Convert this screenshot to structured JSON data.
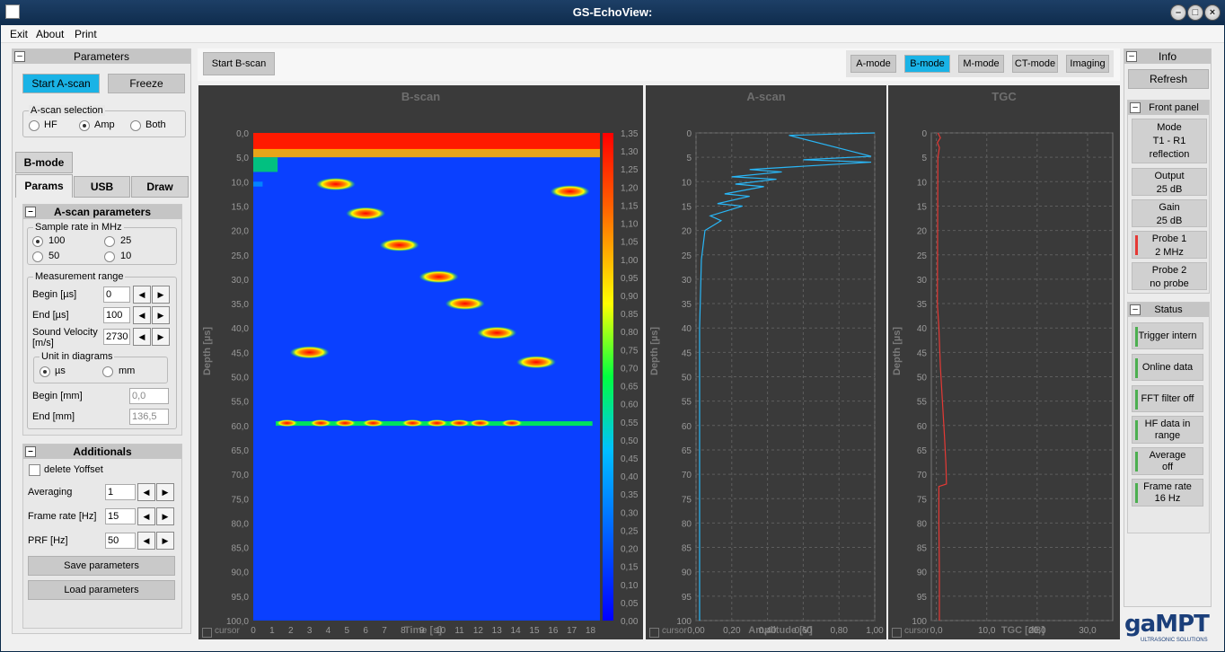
{
  "window": {
    "title": "GS-EchoView:"
  },
  "menu": [
    "Exit",
    "About",
    "Print"
  ],
  "parameters": {
    "title": "Parameters",
    "start_ascan": "Start A-scan",
    "freeze": "Freeze",
    "ascan_selection": {
      "label": "A-scan selection",
      "options": [
        "HF",
        "Amp",
        "Both"
      ],
      "selected": "Amp"
    }
  },
  "bmode_tab": "B-mode",
  "tabs": [
    "Params",
    "USB",
    "Draw"
  ],
  "ascan_params": {
    "title": "A-scan parameters",
    "sample_rate": {
      "label": "Sample rate  in MHz",
      "options": [
        "100",
        "25",
        "50",
        "10"
      ],
      "selected": "100"
    },
    "measurement": {
      "label": "Measurement range",
      "begin_label": "Begin [µs]",
      "begin_value": "0",
      "end_label": "End [µs]",
      "end_value": "100",
      "velocity_label": "Sound Velocity [m/s]",
      "velocity_value": "2730"
    },
    "unit": {
      "label": "Unit in diagrams",
      "options": [
        "µs",
        "mm"
      ],
      "selected": "µs"
    },
    "begin_mm_label": "Begin [mm]",
    "begin_mm_value": "0,0",
    "end_mm_label": "End [mm]",
    "end_mm_value": "136,5"
  },
  "additionals": {
    "title": "Additionals",
    "delete_yoffset": "delete Yoffset",
    "averaging_label": "Averaging",
    "averaging_value": "1",
    "framerate_label": "Frame rate [Hz]",
    "framerate_value": "15",
    "prf_label": "PRF [Hz]",
    "prf_value": "50",
    "save": "Save parameters",
    "load": "Load parameters"
  },
  "toolbar": {
    "start_bscan": "Start B-scan",
    "modes": [
      "A-mode",
      "B-mode",
      "M-mode",
      "CT-mode",
      "Imaging"
    ],
    "active_mode": "B-mode"
  },
  "bscan": {
    "title": "B-scan",
    "ylabel": "Depth [µs]",
    "xlabel": "Time [s]",
    "yticks": [
      "0,0",
      "5,0",
      "10,0",
      "15,0",
      "20,0",
      "25,0",
      "30,0",
      "35,0",
      "40,0",
      "45,0",
      "50,0",
      "55,0",
      "60,0",
      "65,0",
      "70,0",
      "75,0",
      "80,0",
      "85,0",
      "90,0",
      "95,0",
      "100,0"
    ],
    "xticks": [
      "0",
      "1",
      "2",
      "3",
      "4",
      "5",
      "6",
      "7",
      "8",
      "9",
      "10",
      "11",
      "12",
      "13",
      "14",
      "15",
      "16",
      "17",
      "18"
    ],
    "colorbar": [
      "1,35",
      "1,30",
      "1,25",
      "1,20",
      "1,15",
      "1,10",
      "1,05",
      "1,00",
      "0,95",
      "0,90",
      "0,85",
      "0,80",
      "0,75",
      "0,70",
      "0,65",
      "0,60",
      "0,55",
      "0,50",
      "0,45",
      "0,40",
      "0,35",
      "0,30",
      "0,25",
      "0,20",
      "0,15",
      "0,10",
      "0,05",
      "0,00"
    ],
    "cursor": "cursor"
  },
  "ascan_plot": {
    "title": "A-scan",
    "ylabel": "Depth [µs]",
    "xlabel": "Amplitude [V]",
    "yticks": [
      "0",
      "5",
      "10",
      "15",
      "20",
      "25",
      "30",
      "35",
      "40",
      "45",
      "50",
      "55",
      "60",
      "65",
      "70",
      "75",
      "80",
      "85",
      "90",
      "95",
      "100"
    ],
    "xticks": [
      "0,00",
      "0,20",
      "0,40",
      "0,60",
      "0,80",
      "1,00"
    ],
    "cursor": "cursor",
    "color": "#29b6f6"
  },
  "tgc_plot": {
    "title": "TGC",
    "ylabel": "Depth [µs]",
    "xlabel": "TGC [dB]",
    "yticks": [
      "0",
      "5",
      "10",
      "15",
      "20",
      "25",
      "30",
      "35",
      "40",
      "45",
      "50",
      "55",
      "60",
      "65",
      "70",
      "75",
      "80",
      "85",
      "90",
      "95",
      "100"
    ],
    "xticks": [
      "0,0",
      "10,0",
      "20,0",
      "30,0"
    ],
    "cursor": "cursor",
    "color": "#e53935"
  },
  "chart_data": [
    {
      "type": "heatmap",
      "title": "B-scan",
      "xlabel": "Time [s]",
      "ylabel": "Depth [µs]",
      "xlim": [
        0,
        18.5
      ],
      "ylim": [
        0,
        100
      ],
      "clim": [
        0,
        1.35
      ],
      "reflectors": [
        {
          "t": 4.4,
          "depth": 10.5
        },
        {
          "t": 6.0,
          "depth": 16.5
        },
        {
          "t": 7.8,
          "depth": 23.0
        },
        {
          "t": 9.9,
          "depth": 29.5
        },
        {
          "t": 11.3,
          "depth": 35.0
        },
        {
          "t": 13.0,
          "depth": 41.0
        },
        {
          "t": 16.9,
          "depth": 12.0
        },
        {
          "t": 3.0,
          "depth": 45.0
        },
        {
          "t": 15.1,
          "depth": 47.0
        }
      ],
      "backwall_depth": 59.5
    },
    {
      "type": "line",
      "title": "A-scan",
      "xlabel": "Amplitude [V]",
      "ylabel": "Depth [µs]",
      "xlim": [
        0,
        1.0
      ],
      "ylim": [
        0,
        100
      ],
      "series": [
        {
          "x": [
            1.0,
            0.52,
            0.98,
            0.6,
            0.98,
            0.3,
            0.48,
            0.2,
            0.45,
            0.22,
            0.38,
            0.16,
            0.3,
            0.12,
            0.26,
            0.08,
            0.14,
            0.05,
            0.04,
            0.03,
            0.02,
            0.02,
            0.02,
            0.02,
            0.02
          ],
          "y": [
            0,
            0.5,
            4.8,
            5.5,
            6.0,
            7.5,
            8.0,
            9.0,
            9.5,
            10.5,
            11.0,
            12.5,
            13.0,
            14.5,
            15.0,
            17.0,
            18.0,
            20.0,
            23.0,
            26.0,
            40.0,
            60.0,
            80.0,
            95.0,
            100
          ]
        }
      ]
    },
    {
      "type": "line",
      "title": "TGC",
      "xlabel": "TGC [dB]",
      "ylabel": "Depth [µs]",
      "xlim": [
        -1,
        35
      ],
      "ylim": [
        0,
        100
      ],
      "series": [
        {
          "x": [
            0.3,
            0.8,
            0.2,
            0.6,
            0.3,
            0.2,
            0.5,
            0.8,
            1.2,
            1.6,
            1.9,
            2.0,
            0.5,
            0.5,
            0.6,
            0.6
          ],
          "y": [
            0,
            1,
            2,
            3,
            5,
            35,
            40,
            48,
            55,
            62,
            68,
            72,
            72.5,
            80,
            90,
            100
          ]
        }
      ]
    }
  ],
  "info": {
    "title": "Info",
    "refresh": "Refresh",
    "front_panel": "Front panel",
    "items": [
      {
        "line1": "Mode",
        "line2": "T1 - R1",
        "line3": "reflection"
      },
      {
        "line1": "Output",
        "line2": "25 dB"
      },
      {
        "line1": "Gain",
        "line2": "25 dB"
      },
      {
        "line1": "Probe 1",
        "line2": "2 MHz"
      },
      {
        "line1": "Probe 2",
        "line2": "no probe"
      }
    ],
    "status_title": "Status",
    "status": [
      {
        "line1": "Trigger intern"
      },
      {
        "line1": "Online data"
      },
      {
        "line1": "FFT filter off"
      },
      {
        "line1": "HF data in",
        "line2": "range"
      },
      {
        "line1": "Average",
        "line2": "off"
      },
      {
        "line1": "Frame rate",
        "line2": "16 Hz"
      }
    ]
  },
  "logo": {
    "name": "gaMPT",
    "tagline": "ULTRASONIC SOLUTIONS"
  }
}
